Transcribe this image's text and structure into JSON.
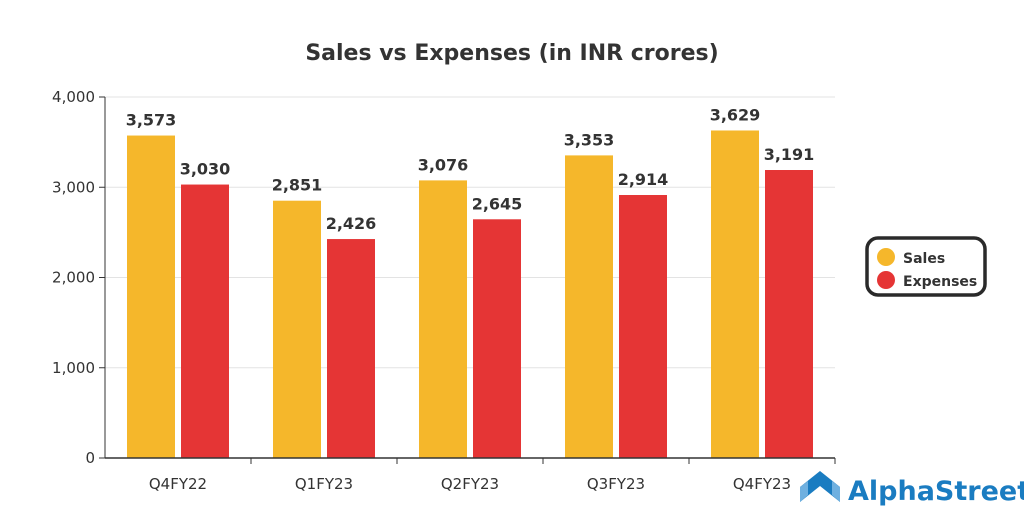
{
  "chart_data": {
    "type": "bar",
    "title": "Sales vs Expenses (in INR crores)",
    "xlabel": "",
    "ylabel": "",
    "categories": [
      "Q4FY22",
      "Q1FY23",
      "Q2FY23",
      "Q3FY23",
      "Q4FY23"
    ],
    "series": [
      {
        "name": "Sales",
        "color": "#f5b72b",
        "values": [
          3573,
          2851,
          3076,
          3353,
          3629
        ],
        "labels": [
          "3,573",
          "2,851",
          "3,076",
          "3,353",
          "3,629"
        ]
      },
      {
        "name": "Expenses",
        "color": "#e53535",
        "values": [
          3030,
          2426,
          2645,
          2914,
          3191
        ],
        "labels": [
          "3,030",
          "2,426",
          "2,645",
          "2,914",
          "3,191"
        ]
      }
    ],
    "ylim": [
      0,
      4000
    ],
    "yticks": [
      0,
      1000,
      2000,
      3000,
      4000
    ],
    "ytick_labels": [
      "0",
      "1,000",
      "2,000",
      "3,000",
      "4,000"
    ],
    "grid": true,
    "legend_position": "right"
  },
  "branding": {
    "logo_text": "AlphaStreet",
    "logo_color": "#1a7cc1"
  }
}
